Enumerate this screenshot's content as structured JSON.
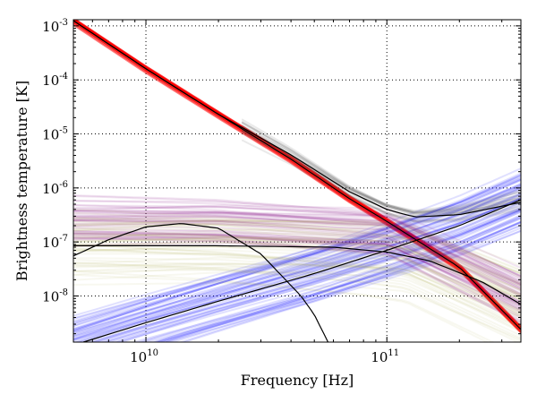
{
  "chart_data": {
    "type": "line",
    "title": "",
    "xlabel": "Frequency [Hz]",
    "ylabel": "Brightness temperature [K]",
    "xscale": "log",
    "yscale": "log",
    "xlim": [
      5000000000.0,
      360000000000.0
    ],
    "ylim": [
      1.4e-09,
      0.0013
    ],
    "grid": true,
    "x_ticks": [
      {
        "value": 10000000000.0,
        "base": "10",
        "exp": "10"
      },
      {
        "value": 100000000000.0,
        "base": "10",
        "exp": "11"
      }
    ],
    "y_ticks": [
      {
        "value": 0.001,
        "base": "10",
        "exp": "-3"
      },
      {
        "value": 0.0001,
        "base": "10",
        "exp": "-4"
      },
      {
        "value": 1e-05,
        "base": "10",
        "exp": "-5"
      },
      {
        "value": 1e-06,
        "base": "10",
        "exp": "-6"
      },
      {
        "value": 1e-07,
        "base": "10",
        "exp": "-7"
      },
      {
        "value": 1e-08,
        "base": "10",
        "exp": "-8"
      }
    ],
    "series": [
      {
        "color": "#000000",
        "style": "median",
        "points": [
          [
            5000000000.0,
            0.00125
          ],
          [
            10000000000.0,
            0.00016
          ],
          [
            20000000000.0,
            2.3e-05
          ],
          [
            40000000000.0,
            4.1e-06
          ],
          [
            70000000000.0,
            8.5e-07
          ],
          [
            100000000000.0,
            4e-07
          ],
          [
            130000000000.0,
            2.9e-07
          ],
          [
            200000000000.0,
            3.2e-07
          ],
          [
            360000000000.0,
            5.4e-07
          ]
        ]
      },
      {
        "color": "#ff0000",
        "style": "band",
        "points": [
          [
            5000000000.0,
            0.00125
          ],
          [
            10000000000.0,
            0.00016
          ],
          [
            20000000000.0,
            2.3e-05
          ],
          [
            40000000000.0,
            3.4e-06
          ],
          [
            70000000000.0,
            6.3e-07
          ],
          [
            100000000000.0,
            2.4e-07
          ],
          [
            200000000000.0,
            3.4e-08
          ],
          [
            360000000000.0,
            2.4e-09
          ]
        ]
      },
      {
        "color": "#0000ff",
        "style": "band",
        "points": [
          [
            5500000000.0,
            1.4e-09
          ],
          [
            10000000000.0,
            3.2e-09
          ],
          [
            20000000000.0,
            8e-09
          ],
          [
            50000000000.0,
            2.6e-08
          ],
          [
            100000000000.0,
            7e-08
          ],
          [
            200000000000.0,
            2e-07
          ],
          [
            360000000000.0,
            6e-07
          ]
        ]
      },
      {
        "color": "#800080",
        "style": "band",
        "points": [
          [
            5000000000.0,
            2.5e-07
          ],
          [
            20000000000.0,
            2.5e-07
          ],
          [
            100000000000.0,
            1.7e-07
          ],
          [
            360000000000.0,
            1.1e-08
          ]
        ]
      },
      {
        "color": "#a0a040",
        "style": "band",
        "points": [
          [
            5000000000.0,
            8e-08
          ],
          [
            20000000000.0,
            8e-08
          ],
          [
            80000000000.0,
            6e-08
          ],
          [
            120000000000.0,
            5e-08
          ],
          [
            360000000000.0,
            6e-09
          ]
        ]
      },
      {
        "color": "#000000",
        "style": "median",
        "points": [
          [
            5000000000.0,
            5.5e-08
          ],
          [
            7000000000.0,
            1.1e-07
          ],
          [
            10000000000.0,
            1.9e-07
          ],
          [
            14000000000.0,
            2.2e-07
          ],
          [
            20000000000.0,
            1.8e-07
          ],
          [
            30000000000.0,
            6e-08
          ],
          [
            44000000000.0,
            1e-08
          ],
          [
            50000000000.0,
            4.5e-09
          ],
          [
            57000000000.0,
            1.4e-09
          ]
        ]
      },
      {
        "color": "#000000",
        "style": "median",
        "points": [
          [
            5000000000.0,
            8.5e-08
          ],
          [
            20000000000.0,
            8.5e-08
          ],
          [
            60000000000.0,
            8e-08
          ],
          [
            100000000000.0,
            6.5e-08
          ],
          [
            150000000000.0,
            4.5e-08
          ],
          [
            250000000000.0,
            1.8e-08
          ],
          [
            360000000000.0,
            7e-09
          ]
        ]
      },
      {
        "color": "#000000",
        "style": "median",
        "points": [
          [
            5500000000.0,
            1.4e-09
          ],
          [
            10000000000.0,
            3.2e-09
          ],
          [
            20000000000.0,
            8e-09
          ],
          [
            50000000000.0,
            2.6e-08
          ],
          [
            100000000000.0,
            7e-08
          ],
          [
            200000000000.0,
            2e-07
          ],
          [
            360000000000.0,
            6e-07
          ]
        ]
      },
      {
        "color": "#000000",
        "style": "median",
        "points": [
          [
            5000000000.0,
            0.00125
          ],
          [
            10000000000.0,
            0.00016
          ],
          [
            20000000000.0,
            2.3e-05
          ],
          [
            40000000000.0,
            3.4e-06
          ],
          [
            70000000000.0,
            6.3e-07
          ],
          [
            100000000000.0,
            2.4e-07
          ],
          [
            200000000000.0,
            3.4e-08
          ],
          [
            360000000000.0,
            2.4e-09
          ]
        ]
      }
    ]
  }
}
